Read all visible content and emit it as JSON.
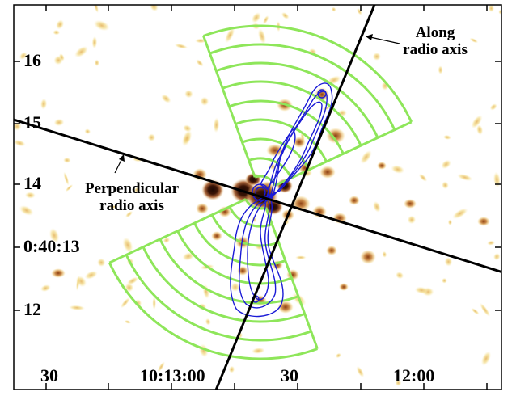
{
  "image": {
    "description_kind": "astronomical X-ray image with radio contours and sector regions",
    "colors": {
      "frame": "#000000",
      "sectors": "#8ee65a",
      "contours": "#1a1ad6",
      "axis_lines": "#000000",
      "emission_light": "#f3dc8a",
      "emission_mid": "#c8823a",
      "emission_dark": "#3a1406",
      "background": "#ffffff"
    }
  },
  "axes": {
    "y_ticks": [
      "16",
      "15",
      "14",
      "0:40:13",
      "12"
    ],
    "x_ticks": [
      "30",
      "10:13:00",
      "30",
      "12:00"
    ]
  },
  "annotations": {
    "along_line1": "Along",
    "along_line2": "radio axis",
    "perp_line1": "Perpendicular",
    "perp_line2": "radio axis"
  }
}
